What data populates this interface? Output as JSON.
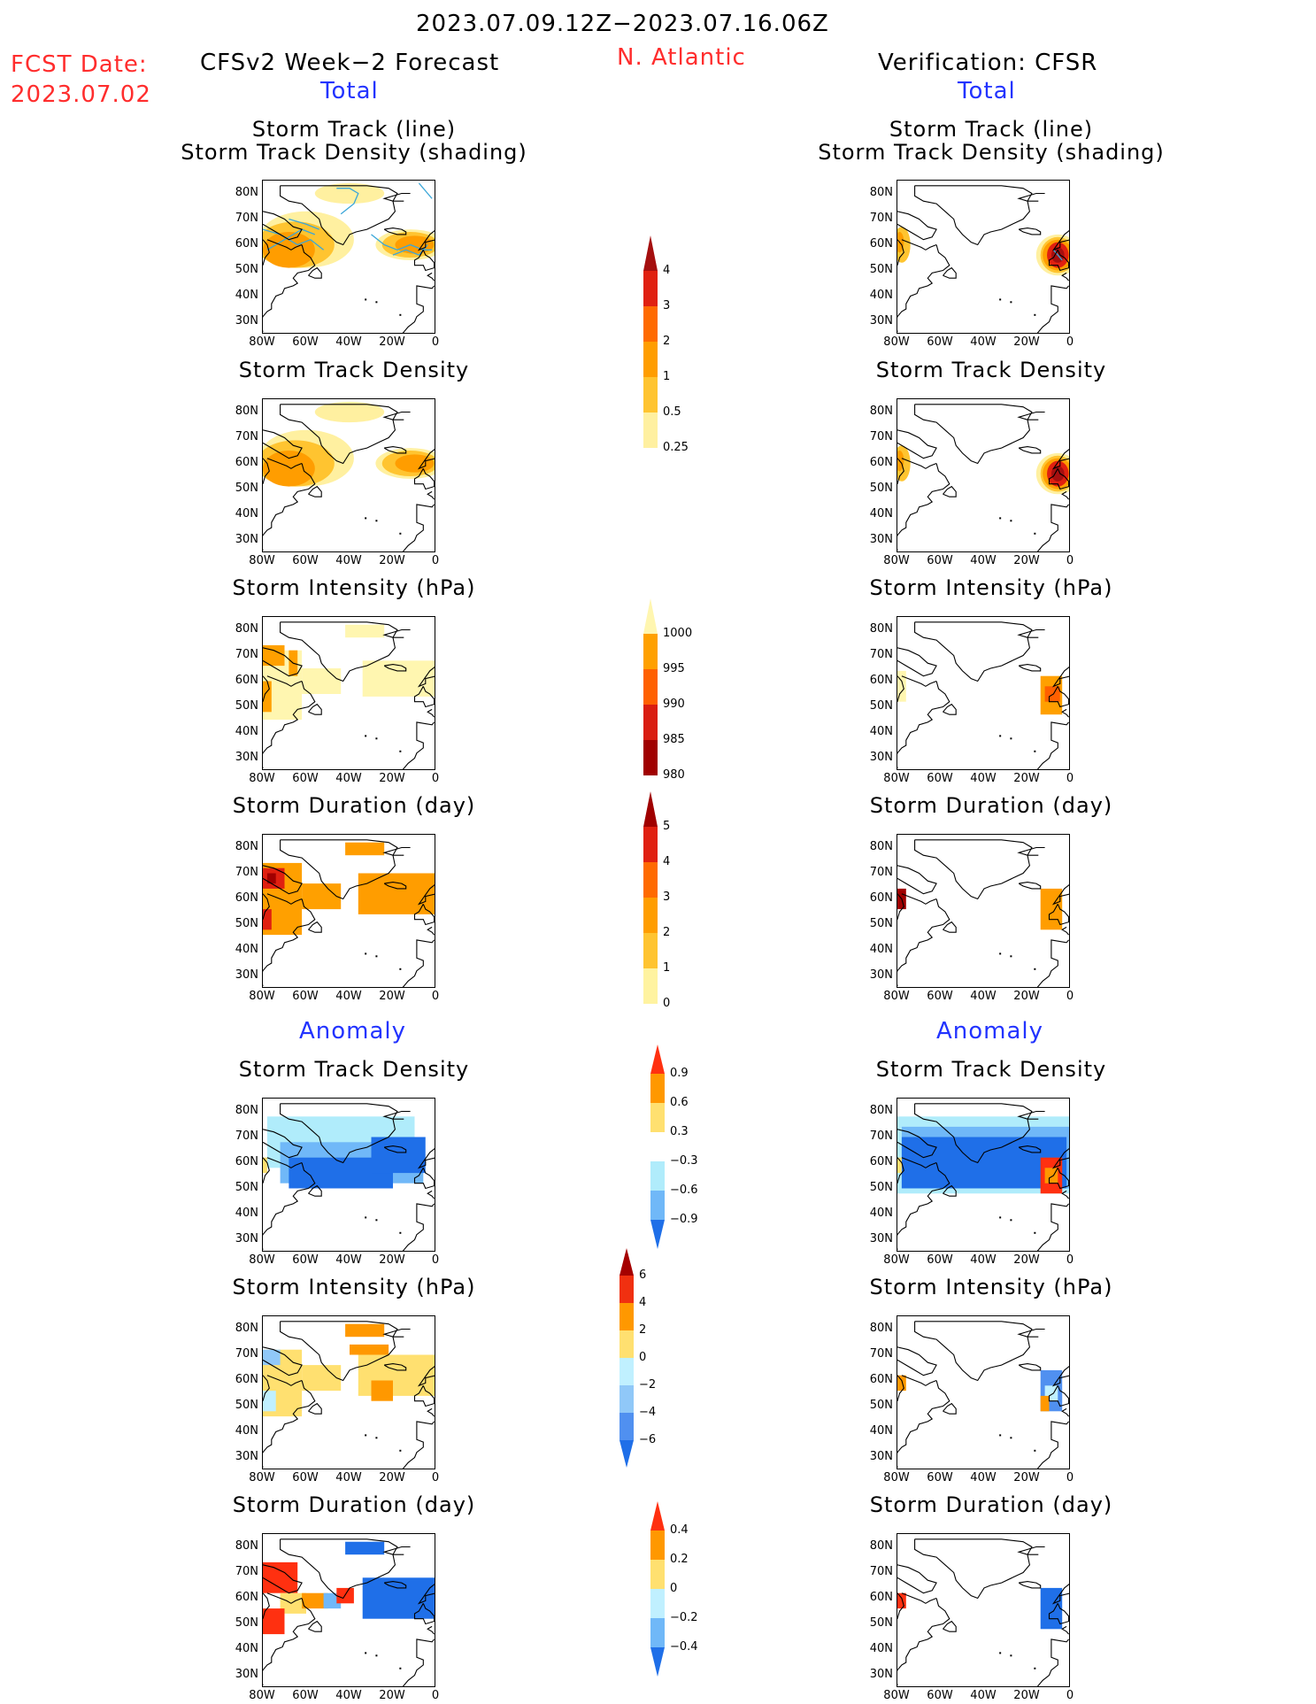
{
  "header": {
    "date_range": "2023.07.09.12Z−2023.07.16.06Z",
    "fcst_label": "FCST Date:",
    "fcst_date": "2023.07.02",
    "left_title": "CFSv2 Week−2 Forecast",
    "region": "N. Atlantic",
    "right_title": "Verification: CFSR",
    "left_total": "Total",
    "right_total": "Total",
    "left_anomaly": "Anomaly",
    "right_anomaly": "Anomaly"
  },
  "rows": [
    {
      "title_line1": "Storm Track (line)",
      "title_line2": "Storm Track Density (shading)"
    },
    {
      "title_line1": "Storm Track Density"
    },
    {
      "title_line1": "Storm Intensity (hPa)"
    },
    {
      "title_line1": "Storm Duration (day)"
    },
    {
      "title_line1": "Storm Track Density"
    },
    {
      "title_line1": "Storm Intensity (hPa)"
    },
    {
      "title_line1": "Storm Duration (day)"
    }
  ],
  "axes": {
    "lat_labels": [
      "80N",
      "70N",
      "60N",
      "50N",
      "40N",
      "30N"
    ],
    "lon_labels": [
      "80W",
      "60W",
      "40W",
      "20W",
      "0"
    ]
  },
  "colorbars": [
    {
      "name": "track-density-total",
      "labels": [
        "4",
        "3",
        "2",
        "1",
        "0.5",
        "0.25"
      ],
      "colors": [
        "#a50f0f",
        "#e02010",
        "#ff6a00",
        "#ff9d00",
        "#ffc430",
        "#fff0a0"
      ]
    },
    {
      "name": "intensity-total",
      "labels": [
        "1000",
        "995",
        "990",
        "985",
        "980"
      ],
      "colors": [
        "#fff6b0",
        "#ffa000",
        "#ff6000",
        "#d91d10",
        "#a00000"
      ]
    },
    {
      "name": "duration-total",
      "labels": [
        "5",
        "4",
        "3",
        "2",
        "1",
        "0"
      ],
      "colors": [
        "#a00000",
        "#e02010",
        "#ff6a00",
        "#ff9d00",
        "#ffc430",
        "#fff3a0"
      ]
    },
    {
      "name": "track-density-anom",
      "labels": [
        "0.9",
        "0.6",
        "0.3",
        "−0.3",
        "−0.6",
        "−0.9"
      ],
      "colors": [
        "#ff3010",
        "#ff9800",
        "#ffe070",
        "#ffffff",
        "#b0ecfb",
        "#70b8f8",
        "#1f6fe8"
      ]
    },
    {
      "name": "intensity-anom",
      "labels": [
        "6",
        "4",
        "2",
        "0",
        "−2",
        "−4",
        "−6"
      ],
      "colors": [
        "#a50000",
        "#f03010",
        "#ff9800",
        "#ffe070",
        "#c0f0ff",
        "#90c8f8",
        "#5090f0",
        "#1f6fe8"
      ]
    },
    {
      "name": "duration-anom",
      "labels": [
        "0.4",
        "0.2",
        "0",
        "−0.2",
        "−0.4"
      ],
      "colors": [
        "#ff3010",
        "#ff9800",
        "#ffe070",
        "#c0f0ff",
        "#70b8f8",
        "#1f6fe8"
      ]
    }
  ],
  "colors": {
    "header_red": "#ff2d2d",
    "header_blue": "#2233ff",
    "storm_track_line": "#3aa6d8"
  }
}
